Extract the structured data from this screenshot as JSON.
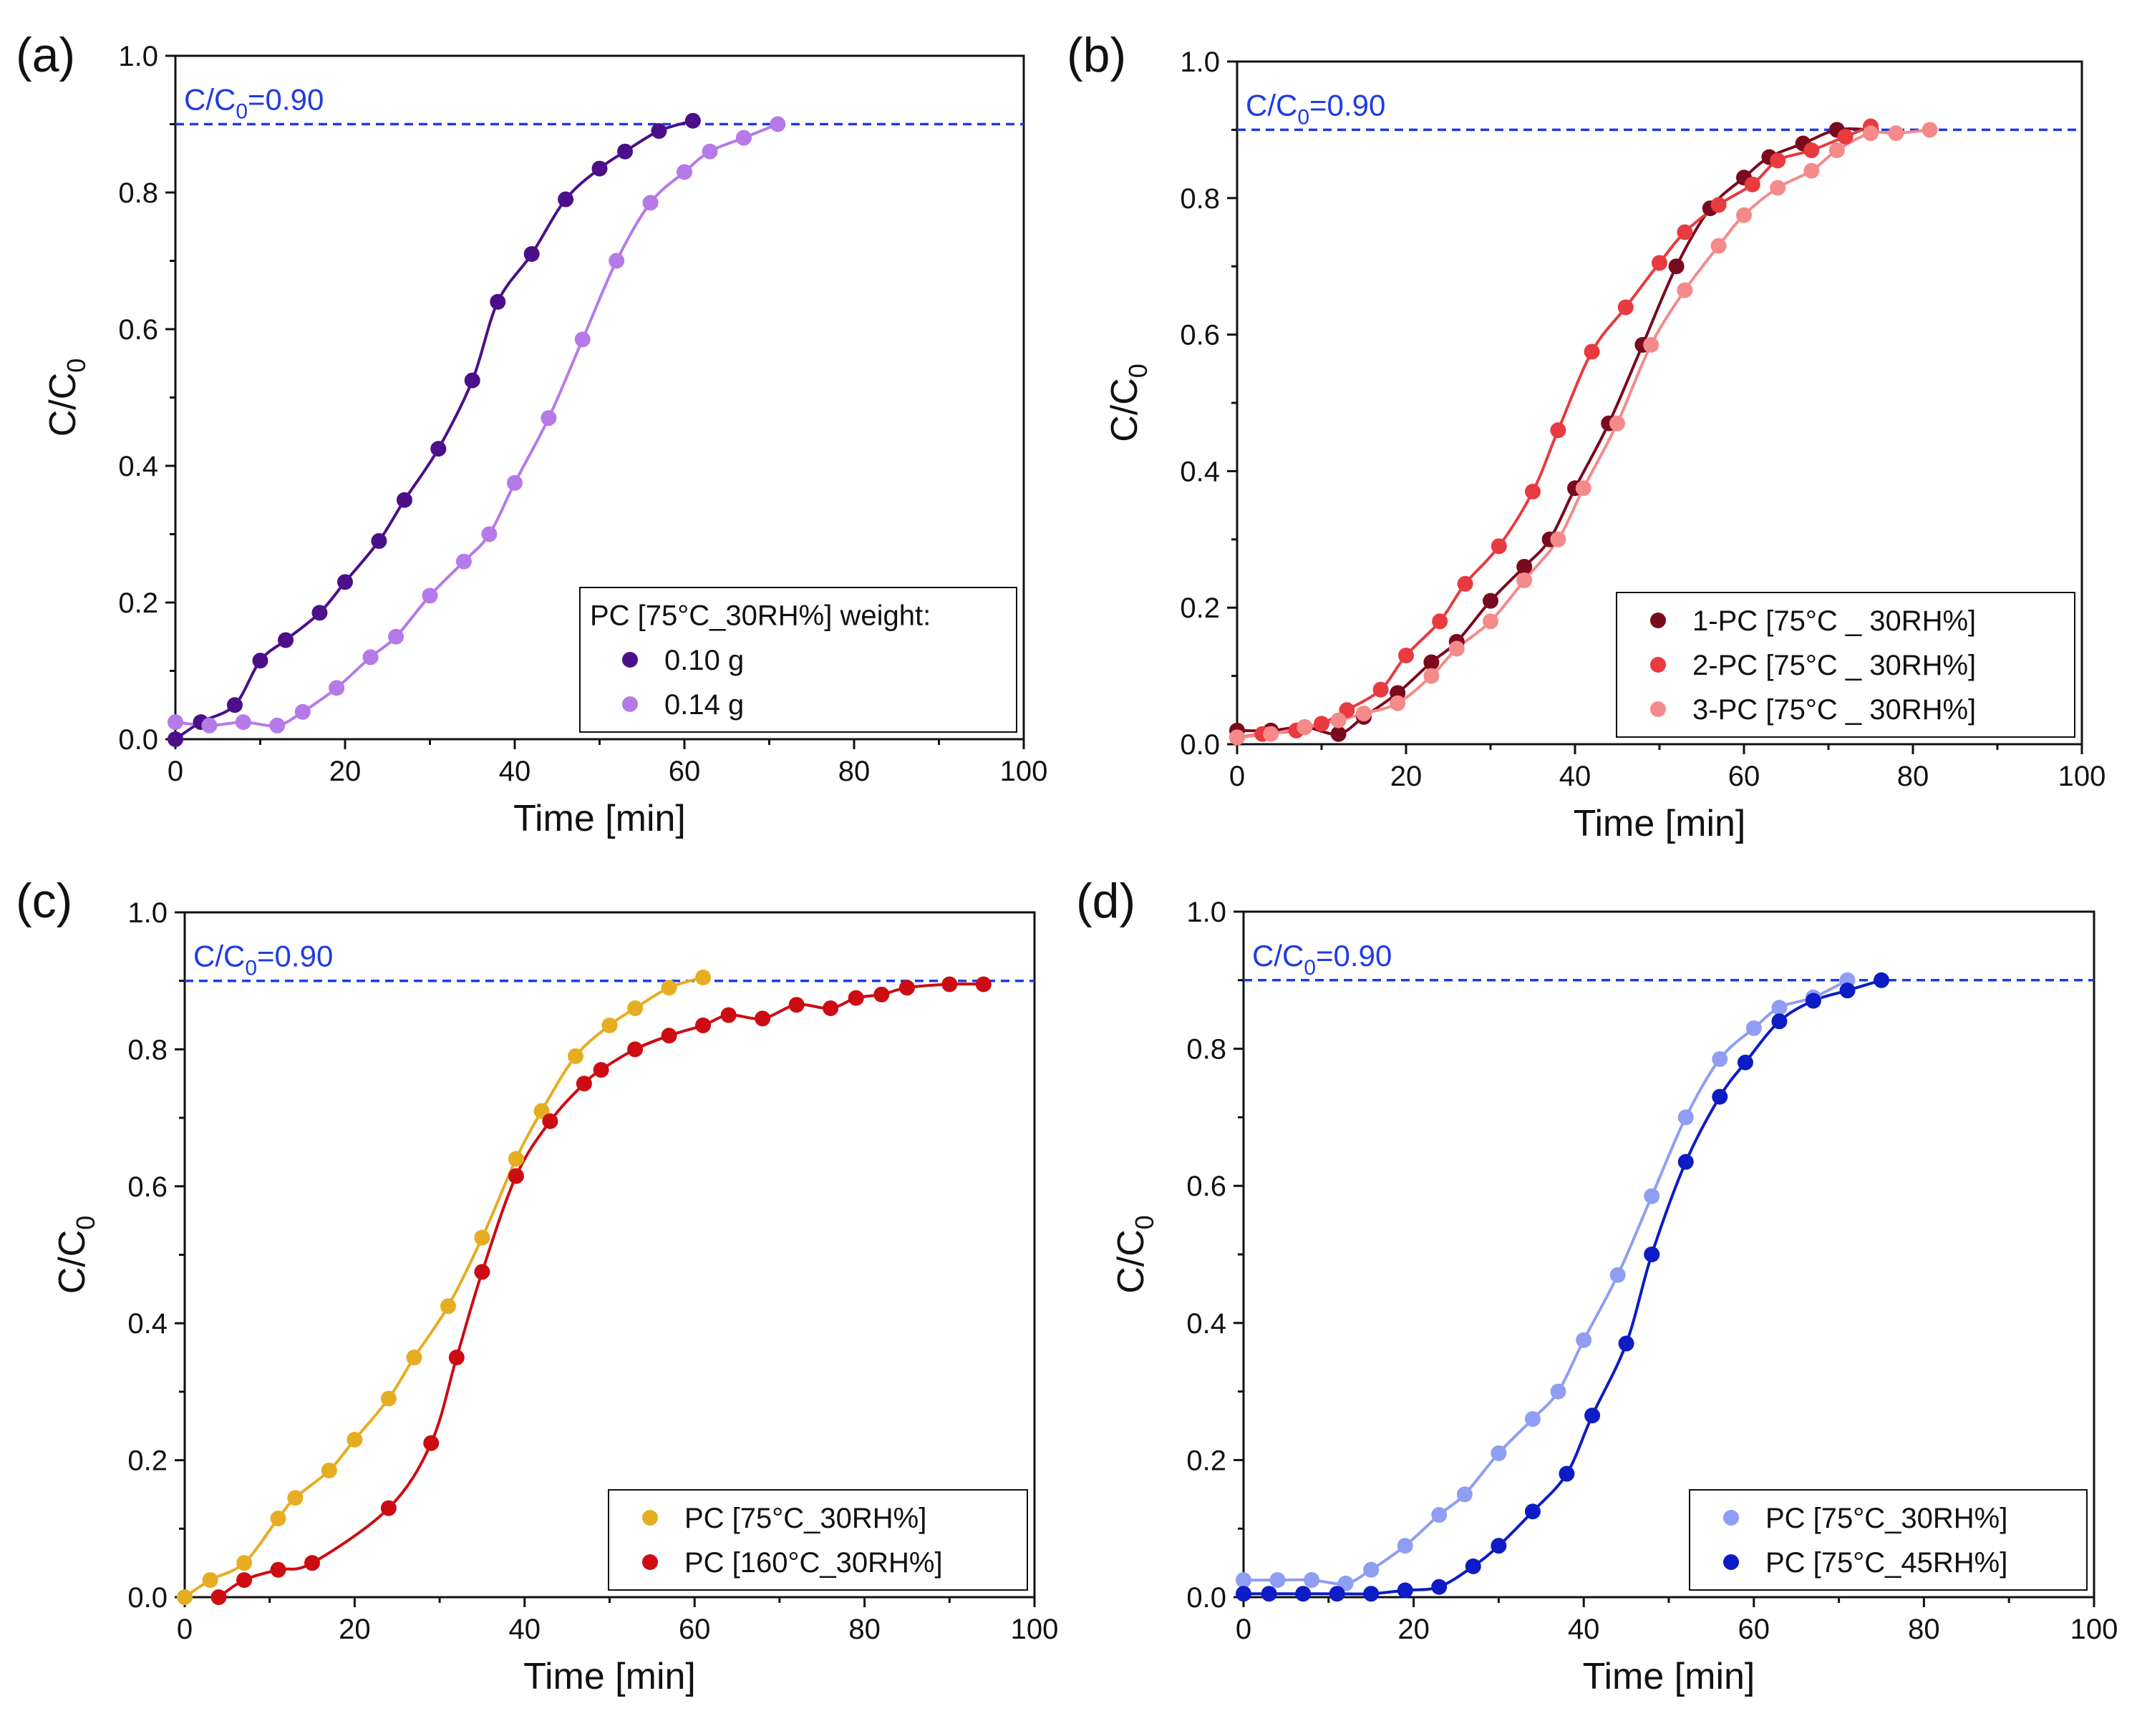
{
  "figure": {
    "description_free": true
  },
  "chart_data": [
    {
      "panel": "(a)",
      "type": "scatter",
      "xlabel": "Time [min]",
      "ylabel_main": "C/C",
      "ylabel_sub": "0",
      "xlim": [
        0,
        100
      ],
      "ylim": [
        0,
        1.0
      ],
      "xticks": [
        "0",
        "20",
        "40",
        "60",
        "80",
        "100"
      ],
      "yticks": [
        "0.0",
        "0.2",
        "0.4",
        "0.6",
        "0.8",
        "1.0"
      ],
      "threshold": {
        "value": 0.9,
        "label_main": "C/C",
        "label_sub": "0",
        "label_rest": "=0.90",
        "color": "#1f3be6"
      },
      "legend": {
        "title": "PC [75°C_30RH%] weight:",
        "position": "bottom-right"
      },
      "series": [
        {
          "name": "0.10 g",
          "color": "#4b1089",
          "x": [
            0,
            3,
            7,
            10,
            13,
            17,
            20,
            24,
            27,
            31,
            35,
            38,
            42,
            46,
            50,
            53,
            57,
            61
          ],
          "y": [
            0.0,
            0.025,
            0.05,
            0.115,
            0.145,
            0.185,
            0.23,
            0.29,
            0.35,
            0.425,
            0.525,
            0.64,
            0.71,
            0.79,
            0.835,
            0.86,
            0.89,
            0.905
          ]
        },
        {
          "name": "0.14 g",
          "color": "#b57ae8",
          "x": [
            0,
            4,
            8,
            12,
            15,
            19,
            23,
            26,
            30,
            34,
            37,
            40,
            44,
            48,
            52,
            56,
            60,
            63,
            67,
            71
          ],
          "y": [
            0.025,
            0.02,
            0.025,
            0.02,
            0.04,
            0.075,
            0.12,
            0.15,
            0.21,
            0.26,
            0.3,
            0.375,
            0.47,
            0.585,
            0.7,
            0.785,
            0.83,
            0.86,
            0.88,
            0.9
          ]
        }
      ]
    },
    {
      "panel": "(b)",
      "type": "scatter",
      "xlabel": "Time [min]",
      "ylabel_main": "C/C",
      "ylabel_sub": "0",
      "xlim": [
        0,
        100
      ],
      "ylim": [
        0,
        1.0
      ],
      "xticks": [
        "0",
        "20",
        "40",
        "60",
        "80",
        "100"
      ],
      "yticks": [
        "0.0",
        "0.2",
        "0.4",
        "0.6",
        "0.8",
        "1.0"
      ],
      "threshold": {
        "value": 0.9,
        "label_main": "C/C",
        "label_sub": "0",
        "label_rest": "=0.90",
        "color": "#1f3be6"
      },
      "legend": {
        "title": "",
        "position": "bottom-right"
      },
      "series": [
        {
          "name": "1-PC [75°C _ 30RH%]",
          "color": "#7a0a1e",
          "x": [
            0,
            4,
            8,
            12,
            15,
            19,
            23,
            26,
            30,
            34,
            37,
            40,
            44,
            48,
            52,
            56,
            60,
            63,
            67,
            71,
            75
          ],
          "y": [
            0.02,
            0.02,
            0.025,
            0.015,
            0.04,
            0.075,
            0.12,
            0.15,
            0.21,
            0.26,
            0.3,
            0.375,
            0.47,
            0.585,
            0.7,
            0.785,
            0.83,
            0.86,
            0.88,
            0.9,
            0.9
          ]
        },
        {
          "name": "2-PC [75°C _ 30RH%]",
          "color": "#e83a3f",
          "x": [
            0,
            3,
            7,
            10,
            13,
            17,
            20,
            24,
            27,
            31,
            35,
            38,
            42,
            46,
            50,
            53,
            57,
            61,
            64,
            68,
            72,
            75
          ],
          "y": [
            0.01,
            0.015,
            0.02,
            0.03,
            0.05,
            0.08,
            0.13,
            0.18,
            0.235,
            0.29,
            0.37,
            0.46,
            0.575,
            0.64,
            0.705,
            0.75,
            0.79,
            0.82,
            0.855,
            0.87,
            0.89,
            0.905
          ]
        },
        {
          "name": "3-PC [75°C _ 30RH%]",
          "color": "#f48a8a",
          "x": [
            0,
            4,
            8,
            12,
            15,
            19,
            23,
            26,
            30,
            34,
            38,
            41,
            45,
            49,
            53,
            57,
            60,
            64,
            68,
            71,
            75,
            78,
            82
          ],
          "y": [
            0.01,
            0.015,
            0.025,
            0.035,
            0.045,
            0.06,
            0.1,
            0.14,
            0.18,
            0.24,
            0.3,
            0.375,
            0.47,
            0.585,
            0.665,
            0.73,
            0.775,
            0.815,
            0.84,
            0.87,
            0.895,
            0.895,
            0.9
          ]
        }
      ]
    },
    {
      "panel": "(c)",
      "type": "scatter",
      "xlabel": "Time [min]",
      "ylabel_main": "C/C",
      "ylabel_sub": "0",
      "xlim": [
        0,
        100
      ],
      "ylim": [
        0,
        1.0
      ],
      "xticks": [
        "0",
        "20",
        "40",
        "60",
        "80",
        "100"
      ],
      "yticks": [
        "0.0",
        "0.2",
        "0.4",
        "0.6",
        "0.8",
        "1.0"
      ],
      "threshold": {
        "value": 0.9,
        "label_main": "C/C",
        "label_sub": "0",
        "label_rest": "=0.90",
        "color": "#1f3be6"
      },
      "legend": {
        "title": "",
        "position": "bottom-right"
      },
      "series": [
        {
          "name": "PC [75°C_30RH%]",
          "color": "#e6ad22",
          "x": [
            0,
            3,
            7,
            11,
            13,
            17,
            20,
            24,
            27,
            31,
            35,
            39,
            42,
            46,
            50,
            53,
            57,
            61
          ],
          "y": [
            0.0,
            0.025,
            0.05,
            0.115,
            0.145,
            0.185,
            0.23,
            0.29,
            0.35,
            0.425,
            0.525,
            0.64,
            0.71,
            0.79,
            0.835,
            0.86,
            0.89,
            0.905
          ]
        },
        {
          "name": "PC [160°C_30RH%]",
          "color": "#cc0c12",
          "x": [
            4,
            7,
            11,
            15,
            24,
            29,
            32,
            35,
            39,
            43,
            47,
            49,
            53,
            57,
            61,
            64,
            68,
            72,
            76,
            79,
            82,
            85,
            90,
            94
          ],
          "y": [
            0.0,
            0.025,
            0.04,
            0.05,
            0.13,
            0.225,
            0.35,
            0.475,
            0.615,
            0.695,
            0.75,
            0.77,
            0.8,
            0.82,
            0.835,
            0.85,
            0.845,
            0.865,
            0.86,
            0.875,
            0.88,
            0.89,
            0.895,
            0.895
          ]
        }
      ]
    },
    {
      "panel": "(d)",
      "type": "scatter",
      "xlabel": "Time [min]",
      "ylabel_main": "C/C",
      "ylabel_sub": "0",
      "xlim": [
        0,
        100
      ],
      "ylim": [
        0,
        1.0
      ],
      "xticks": [
        "0",
        "20",
        "40",
        "60",
        "80",
        "100"
      ],
      "yticks": [
        "0.0",
        "0.2",
        "0.4",
        "0.6",
        "0.8",
        "1.0"
      ],
      "threshold": {
        "value": 0.9,
        "label_main": "C/C",
        "label_sub": "0",
        "label_rest": "=0.90",
        "color": "#1f3be6"
      },
      "legend": {
        "title": "",
        "position": "bottom-right"
      },
      "series": [
        {
          "name": "PC [75°C_30RH%]",
          "color": "#8f9ef2",
          "x": [
            0,
            4,
            8,
            12,
            15,
            19,
            23,
            26,
            30,
            34,
            37,
            40,
            44,
            48,
            52,
            56,
            60,
            63,
            67,
            71
          ],
          "y": [
            0.025,
            0.025,
            0.025,
            0.02,
            0.04,
            0.075,
            0.12,
            0.15,
            0.21,
            0.26,
            0.3,
            0.375,
            0.47,
            0.585,
            0.7,
            0.785,
            0.83,
            0.86,
            0.875,
            0.9
          ]
        },
        {
          "name": "PC [75°C_45RH%]",
          "color": "#0d1cc4",
          "x": [
            0,
            3,
            7,
            11,
            15,
            19,
            23,
            27,
            30,
            34,
            38,
            41,
            45,
            48,
            52,
            56,
            59,
            63,
            67,
            71,
            75
          ],
          "y": [
            0.005,
            0.005,
            0.005,
            0.005,
            0.005,
            0.01,
            0.015,
            0.045,
            0.075,
            0.125,
            0.18,
            0.265,
            0.37,
            0.5,
            0.635,
            0.73,
            0.78,
            0.84,
            0.87,
            0.885,
            0.9
          ]
        }
      ]
    }
  ]
}
